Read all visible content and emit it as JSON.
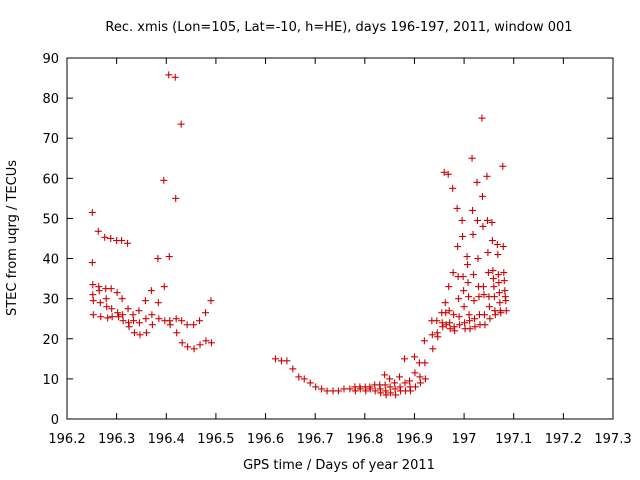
{
  "chart_data": {
    "type": "scatter",
    "title": "Rec. xmis (Lon=105, Lat=-10, h=HE), days 196-197, 2011, window 001",
    "xlabel": "GPS time / Days of year 2011",
    "ylabel": "STEC from uqrg / TECUs",
    "xlim": [
      196.2,
      197.3
    ],
    "ylim": [
      0,
      90
    ],
    "xticks": [
      "196.2",
      "196.3",
      "196.4",
      "196.5",
      "196.6",
      "196.7",
      "196.8",
      "196.9",
      "197",
      "197.1",
      "197.2",
      "197.3"
    ],
    "xtick_values": [
      196.2,
      196.3,
      196.4,
      196.5,
      196.6,
      196.7,
      196.8,
      196.9,
      197.0,
      197.1,
      197.2,
      197.3
    ],
    "yticks": [
      "0",
      "10",
      "20",
      "30",
      "40",
      "50",
      "60",
      "70",
      "80",
      "90"
    ],
    "ytick_values": [
      0,
      10,
      20,
      30,
      40,
      50,
      60,
      70,
      80,
      90
    ],
    "grid": false,
    "legend": "none",
    "marker": "plus",
    "color": "#cc0000",
    "points": [
      [
        196.251,
        51.5
      ],
      [
        196.251,
        39
      ],
      [
        196.252,
        33.5
      ],
      [
        196.252,
        31
      ],
      [
        196.253,
        29.5
      ],
      [
        196.253,
        26
      ],
      [
        196.263,
        46.8
      ],
      [
        196.264,
        33
      ],
      [
        196.265,
        32
      ],
      [
        196.267,
        29
      ],
      [
        196.268,
        25.5
      ],
      [
        196.276,
        45.3
      ],
      [
        196.278,
        32.5
      ],
      [
        196.279,
        30
      ],
      [
        196.28,
        28
      ],
      [
        196.282,
        25.2
      ],
      [
        196.288,
        45
      ],
      [
        196.289,
        32.5
      ],
      [
        196.29,
        27.5
      ],
      [
        196.291,
        25.5
      ],
      [
        196.3,
        44.5
      ],
      [
        196.301,
        31.5
      ],
      [
        196.302,
        26.5
      ],
      [
        196.304,
        25.5
      ],
      [
        196.31,
        44.5
      ],
      [
        196.311,
        30
      ],
      [
        196.312,
        26
      ],
      [
        196.313,
        24.5
      ],
      [
        196.322,
        43.8
      ],
      [
        196.323,
        27.5
      ],
      [
        196.324,
        24
      ],
      [
        196.325,
        23
      ],
      [
        196.333,
        26
      ],
      [
        196.334,
        24.5
      ],
      [
        196.336,
        21.5
      ],
      [
        196.345,
        27
      ],
      [
        196.346,
        24
      ],
      [
        196.347,
        21
      ],
      [
        196.358,
        29.5
      ],
      [
        196.359,
        25
      ],
      [
        196.36,
        21.5
      ],
      [
        196.37,
        32
      ],
      [
        196.371,
        26
      ],
      [
        196.372,
        23.5
      ],
      [
        196.383,
        40
      ],
      [
        196.384,
        29
      ],
      [
        196.385,
        25
      ],
      [
        196.395,
        59.5
      ],
      [
        196.396,
        33
      ],
      [
        196.397,
        24.5
      ],
      [
        196.405,
        85.8
      ],
      [
        196.406,
        40.5
      ],
      [
        196.407,
        24.5
      ],
      [
        196.408,
        23.5
      ],
      [
        196.418,
        85.2
      ],
      [
        196.419,
        55
      ],
      [
        196.42,
        25
      ],
      [
        196.421,
        21.5
      ],
      [
        196.43,
        73.5
      ],
      [
        196.431,
        24.5
      ],
      [
        196.432,
        19
      ],
      [
        196.442,
        23.5
      ],
      [
        196.443,
        18
      ],
      [
        196.455,
        23.5
      ],
      [
        196.456,
        17.5
      ],
      [
        196.467,
        24.5
      ],
      [
        196.468,
        18.5
      ],
      [
        196.479,
        26.5
      ],
      [
        196.48,
        19.5
      ],
      [
        196.49,
        29.5
      ],
      [
        196.491,
        19
      ],
      [
        196.62,
        15
      ],
      [
        196.632,
        14.5
      ],
      [
        196.643,
        14.5
      ],
      [
        196.655,
        12.5
      ],
      [
        196.667,
        10.5
      ],
      [
        196.678,
        10
      ],
      [
        196.69,
        9
      ],
      [
        196.701,
        8
      ],
      [
        196.713,
        7.5
      ],
      [
        196.724,
        7
      ],
      [
        196.736,
        7
      ],
      [
        196.747,
        7
      ],
      [
        196.758,
        7.5
      ],
      [
        196.77,
        7.5
      ],
      [
        196.78,
        8
      ],
      [
        196.781,
        7
      ],
      [
        196.79,
        8
      ],
      [
        196.791,
        7.5
      ],
      [
        196.801,
        8
      ],
      [
        196.802,
        7
      ],
      [
        196.81,
        8
      ],
      [
        196.811,
        7.5
      ],
      [
        196.82,
        8.5
      ],
      [
        196.821,
        7
      ],
      [
        196.83,
        8.5
      ],
      [
        196.831,
        7.5
      ],
      [
        196.832,
        6.5
      ],
      [
        196.84,
        11
      ],
      [
        196.841,
        8.5
      ],
      [
        196.842,
        7
      ],
      [
        196.843,
        6
      ],
      [
        196.85,
        10
      ],
      [
        196.851,
        8
      ],
      [
        196.852,
        6.5
      ],
      [
        196.86,
        9
      ],
      [
        196.861,
        7.5
      ],
      [
        196.862,
        6
      ],
      [
        196.87,
        10.5
      ],
      [
        196.871,
        8
      ],
      [
        196.872,
        7
      ],
      [
        196.88,
        15
      ],
      [
        196.881,
        9
      ],
      [
        196.882,
        7
      ],
      [
        196.89,
        9.5
      ],
      [
        196.891,
        8
      ],
      [
        196.892,
        7
      ],
      [
        196.9,
        15.5
      ],
      [
        196.901,
        11.5
      ],
      [
        196.902,
        8
      ],
      [
        196.91,
        14
      ],
      [
        196.911,
        10.5
      ],
      [
        196.912,
        9
      ],
      [
        196.92,
        19.5
      ],
      [
        196.921,
        14
      ],
      [
        196.922,
        10
      ],
      [
        196.935,
        24.5
      ],
      [
        196.936,
        21
      ],
      [
        196.937,
        17.5
      ],
      [
        196.945,
        24.5
      ],
      [
        196.946,
        21.5
      ],
      [
        196.947,
        20.5
      ],
      [
        196.955,
        26.5
      ],
      [
        196.956,
        24
      ],
      [
        196.957,
        23
      ],
      [
        196.96,
        61.5
      ],
      [
        196.962,
        29
      ],
      [
        196.963,
        26.5
      ],
      [
        196.964,
        23.5
      ],
      [
        196.968,
        61
      ],
      [
        196.969,
        33
      ],
      [
        196.97,
        27
      ],
      [
        196.971,
        24
      ],
      [
        196.972,
        22.5
      ],
      [
        196.977,
        57.5
      ],
      [
        196.978,
        36.5
      ],
      [
        196.979,
        26
      ],
      [
        196.98,
        23
      ],
      [
        196.981,
        22
      ],
      [
        196.986,
        52.5
      ],
      [
        196.987,
        43
      ],
      [
        196.988,
        35.5
      ],
      [
        196.989,
        30
      ],
      [
        196.99,
        25.5
      ],
      [
        196.991,
        23.5
      ],
      [
        196.996,
        49.5
      ],
      [
        196.997,
        45.5
      ],
      [
        196.998,
        35.5
      ],
      [
        196.999,
        32
      ],
      [
        197.0,
        28
      ],
      [
        197.001,
        24
      ],
      [
        197.002,
        22.5
      ],
      [
        197.006,
        40.5
      ],
      [
        197.007,
        38.5
      ],
      [
        197.008,
        34
      ],
      [
        197.009,
        30.5
      ],
      [
        197.01,
        26
      ],
      [
        197.011,
        24.5
      ],
      [
        197.012,
        22.5
      ],
      [
        197.016,
        65
      ],
      [
        197.017,
        52
      ],
      [
        197.018,
        46
      ],
      [
        197.019,
        36
      ],
      [
        197.02,
        29.5
      ],
      [
        197.021,
        25
      ],
      [
        197.022,
        23
      ],
      [
        197.026,
        59
      ],
      [
        197.027,
        49.5
      ],
      [
        197.028,
        40
      ],
      [
        197.029,
        33
      ],
      [
        197.03,
        30.5
      ],
      [
        197.031,
        26
      ],
      [
        197.032,
        23.5
      ],
      [
        197.036,
        75
      ],
      [
        197.037,
        55.5
      ],
      [
        197.038,
        48
      ],
      [
        197.039,
        33
      ],
      [
        197.04,
        31
      ],
      [
        197.041,
        26
      ],
      [
        197.042,
        23.5
      ],
      [
        197.046,
        60.5
      ],
      [
        197.047,
        49.5
      ],
      [
        197.048,
        41.5
      ],
      [
        197.049,
        36.5
      ],
      [
        197.05,
        30.5
      ],
      [
        197.051,
        28
      ],
      [
        197.052,
        25
      ],
      [
        197.056,
        49
      ],
      [
        197.057,
        44.5
      ],
      [
        197.058,
        37
      ],
      [
        197.059,
        35
      ],
      [
        197.06,
        33
      ],
      [
        197.061,
        30.5
      ],
      [
        197.062,
        27
      ],
      [
        197.063,
        26
      ],
      [
        197.067,
        43.5
      ],
      [
        197.068,
        41
      ],
      [
        197.069,
        36
      ],
      [
        197.07,
        34
      ],
      [
        197.071,
        31.5
      ],
      [
        197.072,
        29
      ],
      [
        197.073,
        27
      ],
      [
        197.074,
        26.5
      ],
      [
        197.078,
        63
      ],
      [
        197.079,
        43
      ],
      [
        197.08,
        36.5
      ],
      [
        197.081,
        34.5
      ],
      [
        197.082,
        32
      ],
      [
        197.083,
        30.5
      ],
      [
        197.084,
        29.5
      ],
      [
        197.085,
        27
      ]
    ]
  }
}
